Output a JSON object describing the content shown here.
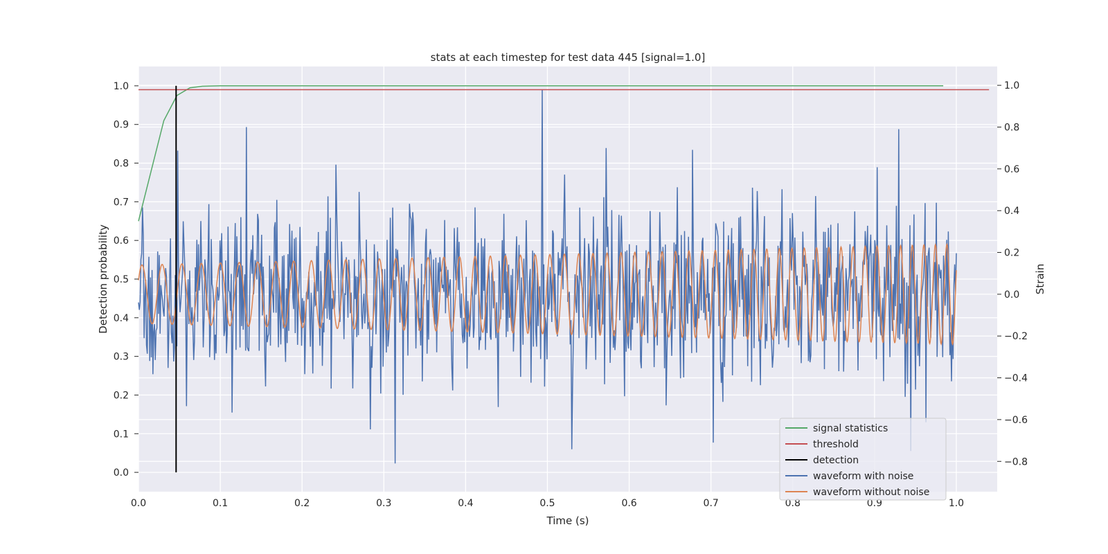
{
  "chart_data": {
    "type": "line",
    "title": "stats at each timestep for test data 445 [signal=1.0]",
    "xlabel": "Time (s)",
    "ylabel": "Detection probability",
    "y2label": "Strain",
    "xlim": [
      0.0,
      1.05
    ],
    "ylim": [
      -0.05,
      1.05
    ],
    "y2lim": [
      -0.945,
      1.09
    ],
    "xticks": [
      "0.0",
      "0.1",
      "0.2",
      "0.3",
      "0.4",
      "0.5",
      "0.6",
      "0.7",
      "0.8",
      "0.9",
      "1.0"
    ],
    "yticks": [
      "0.0",
      "0.1",
      "0.2",
      "0.3",
      "0.4",
      "0.5",
      "0.6",
      "0.7",
      "0.8",
      "0.9",
      "1.0"
    ],
    "y2ticks": [
      "−0.8",
      "−0.6",
      "−0.4",
      "−0.2",
      "0.0",
      "0.2",
      "0.4",
      "0.6",
      "0.8",
      "1.0"
    ],
    "grid": true,
    "legend_position": "lower-right",
    "series": [
      {
        "name": "signal statistics",
        "color": "#55a868",
        "axis": "left",
        "x": [
          0.0,
          0.031,
          0.047,
          0.063,
          0.078,
          0.1,
          0.2,
          0.3,
          0.4,
          0.5,
          0.6,
          0.7,
          0.8,
          0.9,
          0.984
        ],
        "y": [
          0.65,
          0.91,
          0.975,
          0.995,
          0.999,
          1.0,
          1.0,
          1.0,
          1.0,
          1.0,
          1.0,
          1.0,
          1.0,
          1.0,
          1.0
        ]
      },
      {
        "name": "threshold",
        "color": "#c44e52",
        "axis": "left",
        "x": [
          0.0,
          1.04
        ],
        "y": [
          0.99,
          0.99
        ]
      },
      {
        "name": "detection",
        "color": "#000000",
        "axis": "left",
        "x": [
          0.046,
          0.046
        ],
        "y": [
          0.0,
          1.0
        ]
      },
      {
        "name": "waveform with noise",
        "color": "#4c72b0",
        "axis": "right",
        "n_points": 1024,
        "amplitude_std": 0.2,
        "spikes": [
          {
            "x": 0.132,
            "y": 0.8
          },
          {
            "x": 0.241,
            "y": 0.62
          },
          {
            "x": 0.314,
            "y": -0.81
          },
          {
            "x": 0.494,
            "y": 1.0
          },
          {
            "x": 0.572,
            "y": 0.7
          },
          {
            "x": 0.93,
            "y": 0.79
          },
          {
            "x": 0.944,
            "y": -0.75
          },
          {
            "x": 0.703,
            "y": -0.71
          }
        ]
      },
      {
        "name": "waveform without noise",
        "color": "#dd8452",
        "axis": "right",
        "x_start": 0.0,
        "x_end": 1.0,
        "amplitude_start": 0.14,
        "amplitude_end": 0.24,
        "frequency_start_hz": 40,
        "frequency_end_hz": 72
      }
    ]
  }
}
